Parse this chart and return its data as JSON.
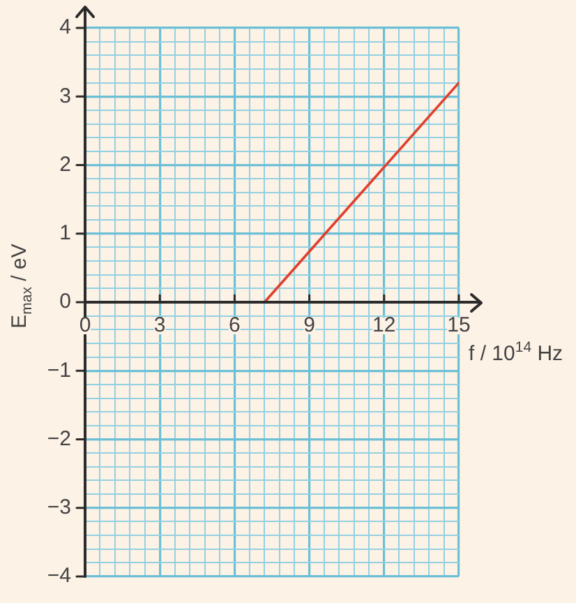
{
  "chart_data": {
    "type": "line",
    "xlabel": "f / 10$^{14}$ Hz",
    "ylabel": "E$_{max}$ / eV",
    "xlim": [
      0,
      15
    ],
    "ylim": [
      -4,
      4
    ],
    "xticks": [
      0,
      {
        "value": 0.6,
        "label": null
      },
      {
        "value": 1.2,
        "label": null
      },
      {
        "value": 1.8,
        "label": null
      },
      {
        "value": 2.4,
        "label": null
      },
      3,
      {
        "value": 3.6,
        "label": null
      },
      {
        "value": 4.2,
        "label": null
      },
      {
        "value": 4.8,
        "label": null
      },
      {
        "value": 5.4,
        "label": null
      },
      6,
      {
        "value": 6.6,
        "label": null
      },
      {
        "value": 7.2,
        "label": null
      },
      {
        "value": 7.8,
        "label": null
      },
      {
        "value": 8.4,
        "label": null
      },
      9,
      {
        "value": 9.6,
        "label": null
      },
      {
        "value": 10.2,
        "label": null
      },
      {
        "value": 10.8,
        "label": null
      },
      {
        "value": 11.4,
        "label": null
      },
      12,
      {
        "value": 12.6,
        "label": null
      },
      {
        "value": 13.2,
        "label": null
      },
      {
        "value": 13.8,
        "label": null
      },
      {
        "value": 14.4,
        "label": null
      },
      15
    ],
    "yticks": [
      -4,
      {
        "value": -3.8,
        "label": null
      },
      {
        "value": -3.6,
        "label": null
      },
      {
        "value": -3.4,
        "label": null
      },
      {
        "value": -3.2,
        "label": null
      },
      -3,
      {
        "value": -2.8,
        "label": null
      },
      {
        "value": -2.6,
        "label": null
      },
      {
        "value": -2.4,
        "label": null
      },
      {
        "value": -2.2,
        "label": null
      },
      -2,
      {
        "value": -1.8,
        "label": null
      },
      {
        "value": -1.6,
        "label": null
      },
      {
        "value": -1.4,
        "label": null
      },
      {
        "value": -1.2,
        "label": null
      },
      -1,
      {
        "value": -0.8,
        "label": null
      },
      {
        "value": -0.6,
        "label": null
      },
      {
        "value": -0.4,
        "label": null
      },
      {
        "value": -0.2,
        "label": null
      },
      0,
      {
        "value": 0.2,
        "label": null
      },
      {
        "value": 0.4,
        "label": null
      },
      {
        "value": 0.6,
        "label": null
      },
      {
        "value": 0.8,
        "label": null
      },
      1,
      {
        "value": 1.2,
        "label": null
      },
      {
        "value": 1.4,
        "label": null
      },
      {
        "value": 1.6,
        "label": null
      },
      {
        "value": 1.8,
        "label": null
      },
      2,
      {
        "value": 2.2,
        "label": null
      },
      {
        "value": 2.4,
        "label": null
      },
      {
        "value": 2.6,
        "label": null
      },
      {
        "value": 2.8,
        "label": null
      },
      3,
      {
        "value": 3.2,
        "label": null
      },
      {
        "value": 3.4,
        "label": null
      },
      {
        "value": 3.6,
        "label": null
      },
      {
        "value": 3.8,
        "label": null
      },
      4
    ],
    "grid": true,
    "marker": "none",
    "series": [
      {
        "x": [
          7.2,
          15
        ],
        "values": [
          0,
          3.2
        ],
        "color": "#e0402d"
      }
    ]
  }
}
